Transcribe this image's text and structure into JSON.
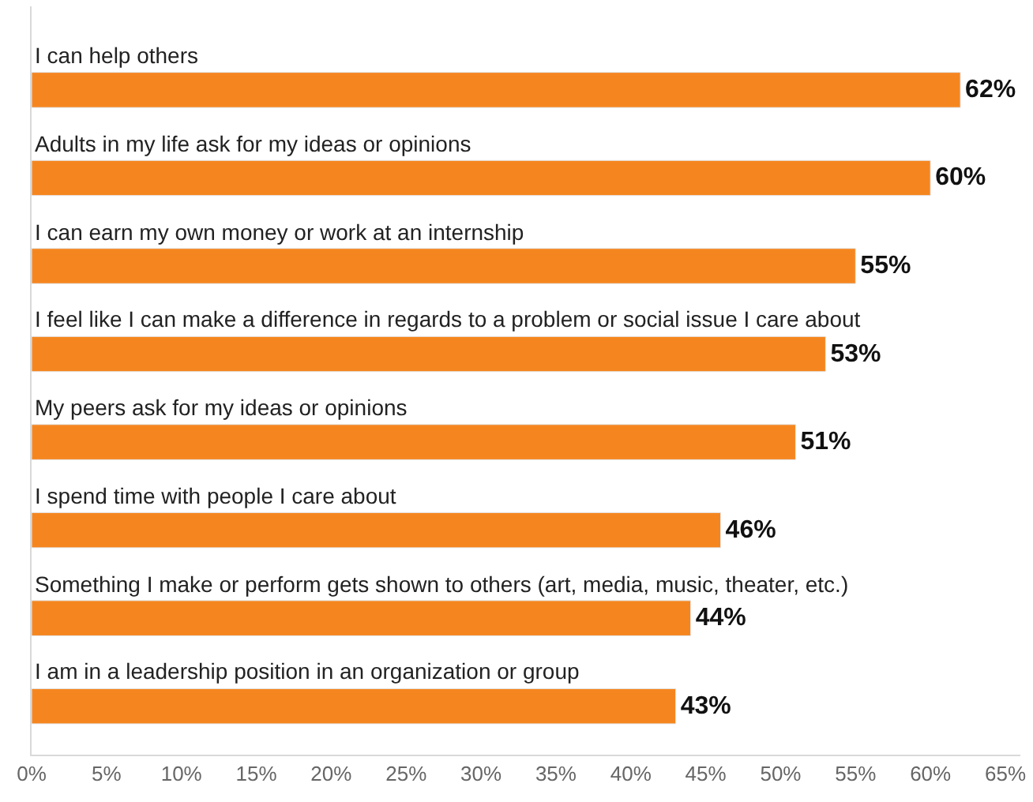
{
  "chart_data": {
    "type": "bar",
    "orientation": "horizontal",
    "categories": [
      "I can help others",
      "Adults in my life ask for my ideas or opinions",
      "I can earn my own money or work at an internship",
      "I feel like I can make a difference in regards to a problem or social issue I care about",
      "My peers ask for my ideas or opinions",
      "I spend time with people I care about",
      "Something I make or perform gets shown to others (art, media, music, theater, etc.)",
      "I am in a leadership position in an organization or group"
    ],
    "values": [
      62,
      60,
      55,
      53,
      51,
      46,
      44,
      43
    ],
    "value_labels": [
      "62%",
      "60%",
      "55%",
      "53%",
      "51%",
      "46%",
      "44%",
      "43%"
    ],
    "color": "#f5861f",
    "xlim": [
      0,
      66
    ],
    "xticks": [
      {
        "value": 0,
        "label": "0%"
      },
      {
        "value": 5,
        "label": "5%"
      },
      {
        "value": 10,
        "label": "10%"
      },
      {
        "value": 15,
        "label": "15%"
      },
      {
        "value": 20,
        "label": "20%"
      },
      {
        "value": 25,
        "label": "25%"
      },
      {
        "value": 30,
        "label": "30%"
      },
      {
        "value": 35,
        "label": "35%"
      },
      {
        "value": 40,
        "label": "40%"
      },
      {
        "value": 45,
        "label": "45%"
      },
      {
        "value": 50,
        "label": "50%"
      },
      {
        "value": 55,
        "label": "55%"
      },
      {
        "value": 60,
        "label": "60%"
      },
      {
        "value": 65,
        "label": "65%"
      }
    ],
    "legend": false,
    "tick_labels": "x"
  }
}
